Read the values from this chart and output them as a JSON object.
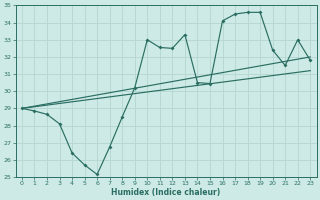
{
  "xlabel": "Humidex (Indice chaleur)",
  "xlim": [
    -0.5,
    23.5
  ],
  "ylim": [
    25,
    35
  ],
  "xticks": [
    0,
    1,
    2,
    3,
    4,
    5,
    6,
    7,
    8,
    9,
    10,
    11,
    12,
    13,
    14,
    15,
    16,
    17,
    18,
    19,
    20,
    21,
    22,
    23
  ],
  "yticks": [
    25,
    26,
    27,
    28,
    29,
    30,
    31,
    32,
    33,
    34,
    35
  ],
  "bg_color": "#ceeae6",
  "grid_color": "#b8d8d4",
  "line_color": "#2a6e62",
  "line1_x": [
    0,
    1,
    2,
    3,
    4,
    5,
    6,
    7,
    8,
    9,
    10,
    11,
    12,
    13,
    14,
    15,
    16,
    17,
    18,
    19,
    20,
    21,
    22,
    23
  ],
  "line1_y": [
    29.0,
    28.85,
    28.65,
    28.1,
    26.4,
    25.7,
    25.15,
    26.75,
    28.5,
    30.2,
    33.0,
    32.55,
    32.5,
    33.3,
    30.5,
    30.45,
    34.1,
    34.5,
    34.6,
    34.6,
    32.4,
    31.5,
    33.0,
    31.8
  ],
  "line2_x": [
    0,
    23
  ],
  "line2_y": [
    29.0,
    32.0
  ],
  "line3_x": [
    0,
    23
  ],
  "line3_y": [
    29.0,
    31.2
  ]
}
